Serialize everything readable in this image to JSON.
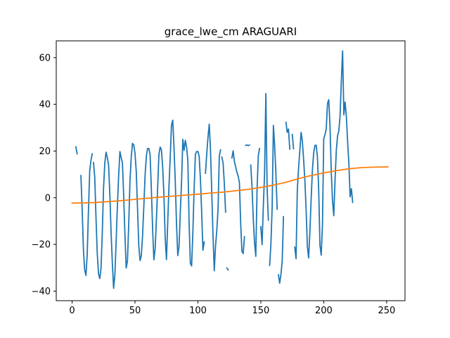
{
  "chart_data": {
    "type": "line",
    "title": "grace_lwe_cm ARAGUARI",
    "xlabel": "",
    "ylabel": "",
    "xlim": [
      -12.6,
      264.6
    ],
    "ylim": [
      -44.1,
      67.2
    ],
    "xticks": [
      0,
      50,
      100,
      150,
      200,
      250
    ],
    "yticks": [
      -40,
      -20,
      0,
      20,
      40,
      60
    ],
    "grid": false,
    "series": [
      {
        "color": "#1f77b4",
        "points": [
          [
            3,
            21.8
          ],
          [
            4,
            18.8
          ],
          [
            null,
            null
          ],
          [
            7,
            9.5
          ],
          [
            8,
            -5.0
          ],
          [
            9,
            -22.3
          ],
          [
            10,
            -30.9
          ],
          [
            11,
            -33.3
          ],
          [
            12,
            -24.4
          ],
          [
            13,
            -5.5
          ],
          [
            14,
            11.5
          ],
          [
            15,
            16.0
          ],
          [
            16,
            18.8
          ],
          [
            null,
            null
          ],
          [
            17,
            15.1
          ],
          [
            18,
            8.8
          ],
          [
            19,
            -8.6
          ],
          [
            20,
            -24.0
          ],
          [
            21,
            -32.5
          ],
          [
            22,
            -34.6
          ],
          [
            23,
            -30.2
          ],
          [
            24,
            -14.9
          ],
          [
            25,
            4.3
          ],
          [
            26,
            14.9
          ],
          [
            27,
            19.5
          ],
          [
            28,
            17.2
          ],
          [
            29,
            14.0
          ],
          [
            30,
            1.4
          ],
          [
            31,
            -15.0
          ],
          [
            32,
            -28.2
          ],
          [
            33,
            -38.8
          ],
          [
            34,
            -33.0
          ],
          [
            35,
            -18.7
          ],
          [
            36,
            -3.5
          ],
          [
            37,
            9.5
          ],
          [
            38,
            19.8
          ],
          [
            39,
            17.2
          ],
          [
            40,
            14.9
          ],
          [
            41,
            0.7
          ],
          [
            42,
            -16.0
          ],
          [
            43,
            -30.1
          ],
          [
            44,
            -27.0
          ],
          [
            45,
            -11.5
          ],
          [
            46,
            7.1
          ],
          [
            47,
            17.4
          ],
          [
            48,
            23.3
          ],
          [
            49,
            22.6
          ],
          [
            50,
            19.0
          ],
          [
            51,
            11.2
          ],
          [
            52,
            -4.6
          ],
          [
            53,
            -20.5
          ],
          [
            54,
            -26.9
          ],
          [
            55,
            -24.9
          ],
          [
            56,
            -16.3
          ],
          [
            57,
            -3.8
          ],
          [
            58,
            9.5
          ],
          [
            59,
            17.8
          ],
          [
            60,
            21.1
          ],
          [
            61,
            21.1
          ],
          [
            62,
            18.3
          ],
          [
            63,
            3.8
          ],
          [
            64,
            -13.3
          ],
          [
            65,
            -26.6
          ],
          [
            66,
            -21.8
          ],
          [
            67,
            -9.5
          ],
          [
            68,
            4.4
          ],
          [
            69,
            18.5
          ],
          [
            70,
            21.7
          ],
          [
            71,
            20.5
          ],
          [
            72,
            13.0
          ],
          [
            73,
            0.9
          ],
          [
            74,
            -17.4
          ],
          [
            75,
            -26.5
          ],
          [
            76,
            -10.7
          ],
          [
            77,
            5.0
          ],
          [
            78,
            17.4
          ],
          [
            79,
            31.1
          ],
          [
            80,
            33.2
          ],
          [
            81,
            21.5
          ],
          [
            82,
            7.0
          ],
          [
            83,
            -11.5
          ],
          [
            84,
            -24.8
          ],
          [
            85,
            -20.8
          ],
          [
            86,
            -6.3
          ],
          [
            87,
            6.9
          ],
          [
            88,
            25.0
          ],
          [
            89,
            20.3
          ],
          [
            90,
            24.6
          ],
          [
            91,
            21.7
          ],
          [
            92,
            16.0
          ],
          [
            93,
            -10.8
          ],
          [
            94,
            -28.2
          ],
          [
            95,
            -29.2
          ],
          [
            96,
            -14.6
          ],
          [
            97,
            3.9
          ],
          [
            98,
            18.6
          ],
          [
            99,
            19.8
          ],
          [
            100,
            19.8
          ],
          [
            101,
            17.7
          ],
          [
            102,
            7.9
          ],
          [
            103,
            -6.7
          ],
          [
            104,
            -22.5
          ],
          [
            105,
            -18.9
          ],
          [
            null,
            null
          ],
          [
            106,
            10.5
          ],
          [
            107,
            18.6
          ],
          [
            108,
            25.9
          ],
          [
            109,
            31.5
          ],
          [
            110,
            20.4
          ],
          [
            111,
            2.5
          ],
          [
            112,
            -16.2
          ],
          [
            113,
            -31.3
          ],
          [
            114,
            -20.6
          ],
          [
            115,
            -14.1
          ],
          [
            116,
            -4.9
          ],
          [
            117,
            17.9
          ],
          [
            118,
            20.5
          ],
          [
            null,
            null
          ],
          [
            119,
            17.4
          ],
          [
            120,
            15.0
          ],
          [
            121,
            6.1
          ],
          [
            122,
            -6.2
          ],
          [
            null,
            null
          ],
          [
            123,
            -30.1
          ],
          [
            124,
            -30.9
          ],
          [
            null,
            null
          ],
          [
            126,
            -8.9
          ],
          [
            null,
            null
          ],
          [
            127,
            17.0
          ],
          [
            128,
            20.1
          ],
          [
            129,
            15.5
          ],
          [
            130,
            13.3
          ],
          [
            131,
            10.9
          ],
          [
            132,
            9.3
          ],
          [
            133,
            6.3
          ],
          [
            134,
            -11.1
          ],
          [
            135,
            -23.0
          ],
          [
            136,
            -23.9
          ],
          [
            137,
            -16.7
          ],
          [
            null,
            null
          ],
          [
            138,
            22.4
          ],
          [
            139,
            22.6
          ],
          [
            140,
            22.3
          ],
          [
            141,
            22.6
          ],
          [
            null,
            null
          ],
          [
            142,
            14.0
          ],
          [
            143,
            4.8
          ],
          [
            144,
            -9.0
          ],
          [
            145,
            -19.1
          ],
          [
            146,
            -25.1
          ],
          [
            147,
            3.4
          ],
          [
            148,
            18.1
          ],
          [
            149,
            21.1
          ],
          [
            null,
            null
          ],
          [
            150,
            -12.4
          ],
          [
            151,
            -20.1
          ],
          [
            152,
            -3.5
          ],
          [
            153,
            10.4
          ],
          [
            154,
            44.6
          ],
          [
            155,
            4.2
          ],
          [
            156,
            -9.6
          ],
          [
            null,
            null
          ],
          [
            157,
            -29.0
          ],
          [
            158,
            -20.0
          ],
          [
            159,
            -4.3
          ],
          [
            160,
            31.0
          ],
          [
            161,
            22.0
          ],
          [
            162,
            10.0
          ],
          [
            163,
            -4.9
          ],
          [
            null,
            null
          ],
          [
            164,
            -33.0
          ],
          [
            165,
            -36.6
          ],
          [
            166,
            -32.8
          ],
          [
            167,
            -27.2
          ],
          [
            168,
            -8.1
          ],
          [
            null,
            null
          ],
          [
            170,
            32.3
          ],
          [
            171,
            28.0
          ],
          [
            172,
            29.4
          ],
          [
            173,
            20.8
          ],
          [
            null,
            null
          ],
          [
            175,
            27.1
          ],
          [
            176,
            21.0
          ],
          [
            null,
            null
          ],
          [
            177,
            -21.2
          ],
          [
            178,
            -26.1
          ],
          [
            179,
            3.2
          ],
          [
            180,
            12.6
          ],
          [
            181,
            20.1
          ],
          [
            182,
            28.0
          ],
          [
            183,
            24.2
          ],
          [
            184,
            16.4
          ],
          [
            185,
            7.6
          ],
          [
            186,
            -5.0
          ],
          [
            187,
            -20.8
          ],
          [
            188,
            -25.8
          ],
          [
            189,
            -14.6
          ],
          [
            190,
            -0.5
          ],
          [
            191,
            11.7
          ],
          [
            192,
            19.2
          ],
          [
            193,
            22.4
          ],
          [
            194,
            22.5
          ],
          [
            195,
            17.4
          ],
          [
            196,
            3.5
          ],
          [
            197,
            -20.3
          ],
          [
            198,
            -24.6
          ],
          [
            199,
            -11.5
          ],
          [
            200,
            25.2
          ],
          [
            201,
            27.0
          ],
          [
            202,
            29.5
          ],
          [
            203,
            40.4
          ],
          [
            204,
            42.0
          ],
          [
            205,
            30.5
          ],
          [
            206,
            10.9
          ],
          [
            207,
            -1.4
          ],
          [
            208,
            -7.7
          ],
          [
            209,
            7.5
          ],
          [
            210,
            20.2
          ],
          [
            211,
            26.5
          ],
          [
            212,
            28.6
          ],
          [
            213,
            35.1
          ],
          [
            214,
            50.1
          ],
          [
            215,
            62.9
          ],
          [
            216,
            35.5
          ],
          [
            217,
            41.0
          ],
          [
            218,
            34.7
          ],
          [
            219,
            23.8
          ],
          [
            220,
            14.5
          ],
          [
            221,
            0.4
          ],
          [
            222,
            3.9
          ],
          [
            223,
            -2.0
          ]
        ]
      },
      {
        "color": "#ff7f0e",
        "points": [
          [
            0,
            -2.3
          ],
          [
            10,
            -2.2
          ],
          [
            20,
            -2.0
          ],
          [
            30,
            -1.6
          ],
          [
            40,
            -1.2
          ],
          [
            50,
            -0.7
          ],
          [
            60,
            -0.2
          ],
          [
            70,
            0.3
          ],
          [
            80,
            0.7
          ],
          [
            90,
            1.1
          ],
          [
            100,
            1.5
          ],
          [
            110,
            2.0
          ],
          [
            120,
            2.4
          ],
          [
            130,
            3.0
          ],
          [
            140,
            3.6
          ],
          [
            150,
            4.4
          ],
          [
            160,
            5.4
          ],
          [
            170,
            6.6
          ],
          [
            180,
            8.2
          ],
          [
            190,
            9.5
          ],
          [
            200,
            10.6
          ],
          [
            210,
            11.6
          ],
          [
            220,
            12.4
          ],
          [
            230,
            12.9
          ],
          [
            240,
            13.1
          ],
          [
            251,
            13.2
          ]
        ]
      }
    ]
  }
}
